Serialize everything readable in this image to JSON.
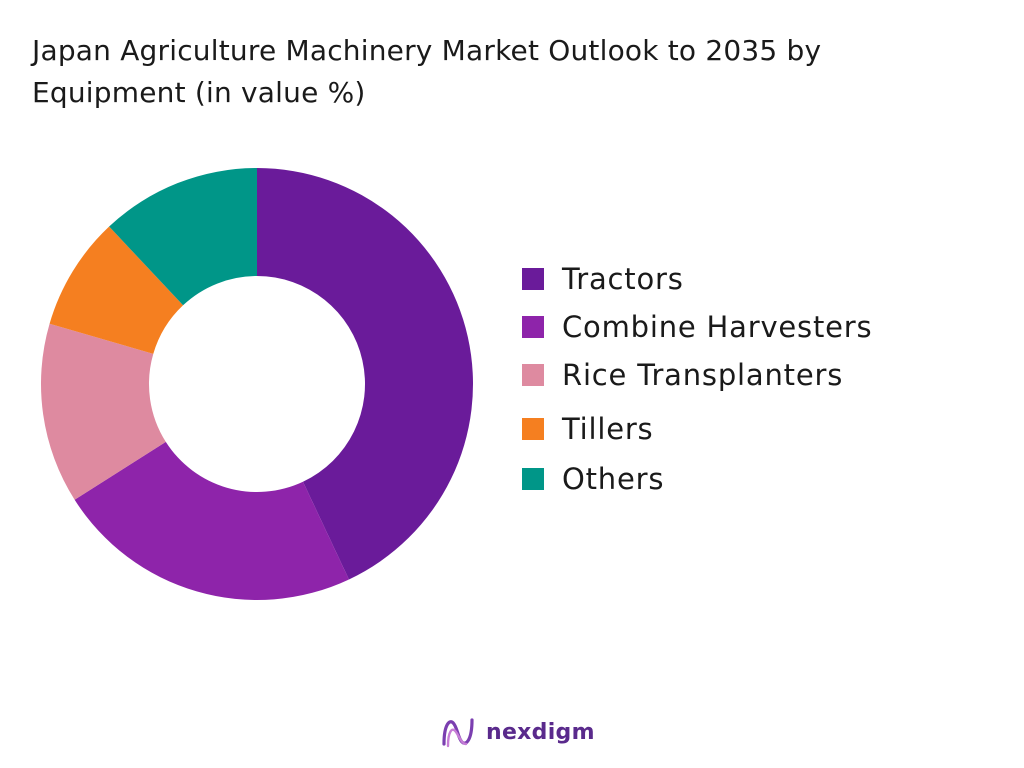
{
  "title": "Japan Agriculture Machinery Market Outlook to 2035 by Equipment (in value %)",
  "chart_data": {
    "type": "pie",
    "donut": true,
    "title": "Japan Agriculture Machinery Market Outlook to 2035 by Equipment (in value %)",
    "legend_position": "right",
    "slices": [
      {
        "label": "Tractors",
        "value": 43,
        "color": "#6a1b9a"
      },
      {
        "label": "Combine Harvesters",
        "value": 23,
        "color": "#8e24aa"
      },
      {
        "label": "Rice Transplanters",
        "value": 13.5,
        "color": "#de8aa0"
      },
      {
        "label": "Tillers",
        "value": 8.5,
        "color": "#f57f20"
      },
      {
        "label": "Others",
        "value": 12,
        "color": "#009688"
      }
    ]
  },
  "brand": {
    "name": "nexdigm",
    "logo_icon": "nexdigm-logo-icon",
    "color": "#5a2a8c"
  }
}
